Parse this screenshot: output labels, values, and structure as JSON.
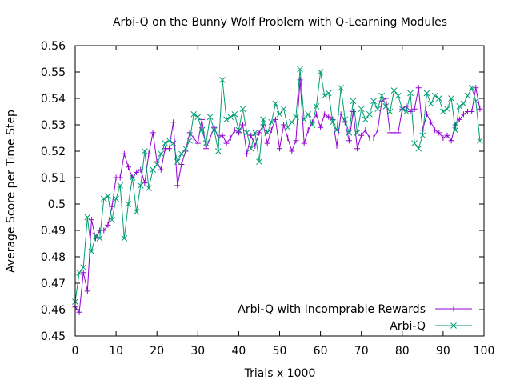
{
  "chart_data": {
    "type": "line",
    "title": "Arbi-Q on the Bunny Wolf Problem with Q-Learning Modules",
    "xlabel": "Trials x 1000",
    "ylabel": "Average Score per Time Step",
    "xlim": [
      0,
      100
    ],
    "ylim": [
      0.45,
      0.56
    ],
    "xticks": [
      "0",
      "10",
      "20",
      "30",
      "40",
      "50",
      "60",
      "70",
      "80",
      "90",
      "100"
    ],
    "yticks": [
      "0.45",
      "0.46",
      "0.47",
      "0.48",
      "0.49",
      "0.5",
      "0.51",
      "0.52",
      "0.53",
      "0.54",
      "0.55",
      "0.56"
    ],
    "grid": false,
    "legend_position": "bottom-right",
    "series": [
      {
        "name": "Arbi-Q with Incomprable Rewards",
        "color": "#9400d3",
        "marker": "plus",
        "x": [
          0,
          1,
          2,
          3,
          4,
          5,
          6,
          7,
          8,
          9,
          10,
          11,
          12,
          13,
          14,
          15,
          16,
          17,
          18,
          19,
          20,
          21,
          22,
          23,
          24,
          25,
          26,
          27,
          28,
          29,
          30,
          31,
          32,
          33,
          34,
          35,
          36,
          37,
          38,
          39,
          40,
          41,
          42,
          43,
          44,
          45,
          46,
          47,
          48,
          49,
          50,
          51,
          52,
          53,
          54,
          55,
          56,
          57,
          58,
          59,
          60,
          61,
          62,
          63,
          64,
          65,
          66,
          67,
          68,
          69,
          70,
          71,
          72,
          73,
          74,
          75,
          76,
          77,
          78,
          79,
          80,
          81,
          82,
          83,
          84,
          85,
          86,
          87,
          88,
          89,
          90,
          91,
          92,
          93,
          94,
          95,
          96,
          97,
          98,
          99
        ],
        "values": [
          0.461,
          0.459,
          0.474,
          0.467,
          0.494,
          0.487,
          0.49,
          0.49,
          0.492,
          0.499,
          0.51,
          0.51,
          0.519,
          0.514,
          0.51,
          0.512,
          0.513,
          0.508,
          0.519,
          0.527,
          0.516,
          0.513,
          0.521,
          0.521,
          0.531,
          0.507,
          0.515,
          0.52,
          0.527,
          0.525,
          0.523,
          0.532,
          0.521,
          0.525,
          0.529,
          0.525,
          0.526,
          0.523,
          0.525,
          0.528,
          0.527,
          0.53,
          0.519,
          0.526,
          0.522,
          0.527,
          0.53,
          0.523,
          0.528,
          0.532,
          0.521,
          0.53,
          0.525,
          0.52,
          0.524,
          0.547,
          0.523,
          0.528,
          0.531,
          0.534,
          0.529,
          0.534,
          0.533,
          0.532,
          0.522,
          0.534,
          0.531,
          0.524,
          0.535,
          0.521,
          0.526,
          0.528,
          0.525,
          0.525,
          0.528,
          0.539,
          0.54,
          0.527,
          0.527,
          0.527,
          0.536,
          0.537,
          0.535,
          0.536,
          0.544,
          0.528,
          0.534,
          0.531,
          0.528,
          0.527,
          0.525,
          0.526,
          0.524,
          0.53,
          0.532,
          0.534,
          0.535,
          0.535,
          0.544,
          0.536
        ]
      },
      {
        "name": "Arbi-Q",
        "color": "#009e73",
        "marker": "cross",
        "x": [
          0,
          1,
          2,
          3,
          4,
          5,
          6,
          7,
          8,
          9,
          10,
          11,
          12,
          13,
          14,
          15,
          16,
          17,
          18,
          19,
          20,
          21,
          22,
          23,
          24,
          25,
          26,
          27,
          28,
          29,
          30,
          31,
          32,
          33,
          34,
          35,
          36,
          37,
          38,
          39,
          40,
          41,
          42,
          43,
          44,
          45,
          46,
          47,
          48,
          49,
          50,
          51,
          52,
          53,
          54,
          55,
          56,
          57,
          58,
          59,
          60,
          61,
          62,
          63,
          64,
          65,
          66,
          67,
          68,
          69,
          70,
          71,
          72,
          73,
          74,
          75,
          76,
          77,
          78,
          79,
          80,
          81,
          82,
          83,
          84,
          85,
          86,
          87,
          88,
          89,
          90,
          91,
          92,
          93,
          94,
          95,
          96,
          97,
          98,
          99
        ],
        "values": [
          0.463,
          0.474,
          0.476,
          0.495,
          0.482,
          0.488,
          0.487,
          0.502,
          0.503,
          0.494,
          0.502,
          0.507,
          0.487,
          0.5,
          0.51,
          0.497,
          0.507,
          0.52,
          0.506,
          0.513,
          0.515,
          0.519,
          0.523,
          0.524,
          0.523,
          0.516,
          0.519,
          0.521,
          0.524,
          0.534,
          0.533,
          0.528,
          0.523,
          0.533,
          0.528,
          0.52,
          0.547,
          0.532,
          0.533,
          0.534,
          0.528,
          0.536,
          0.527,
          0.521,
          0.527,
          0.516,
          0.532,
          0.527,
          0.531,
          0.538,
          0.534,
          0.536,
          0.529,
          0.531,
          0.533,
          0.551,
          0.532,
          0.534,
          0.53,
          0.537,
          0.55,
          0.541,
          0.542,
          0.531,
          0.528,
          0.544,
          0.532,
          0.527,
          0.539,
          0.527,
          0.536,
          0.532,
          0.534,
          0.539,
          0.536,
          0.541,
          0.537,
          0.535,
          0.543,
          0.541,
          0.536,
          0.535,
          0.542,
          0.523,
          0.521,
          0.526,
          0.542,
          0.538,
          0.541,
          0.54,
          0.535,
          0.536,
          0.54,
          0.528,
          0.537,
          0.538,
          0.541,
          0.544,
          0.539,
          0.524
        ]
      }
    ]
  }
}
